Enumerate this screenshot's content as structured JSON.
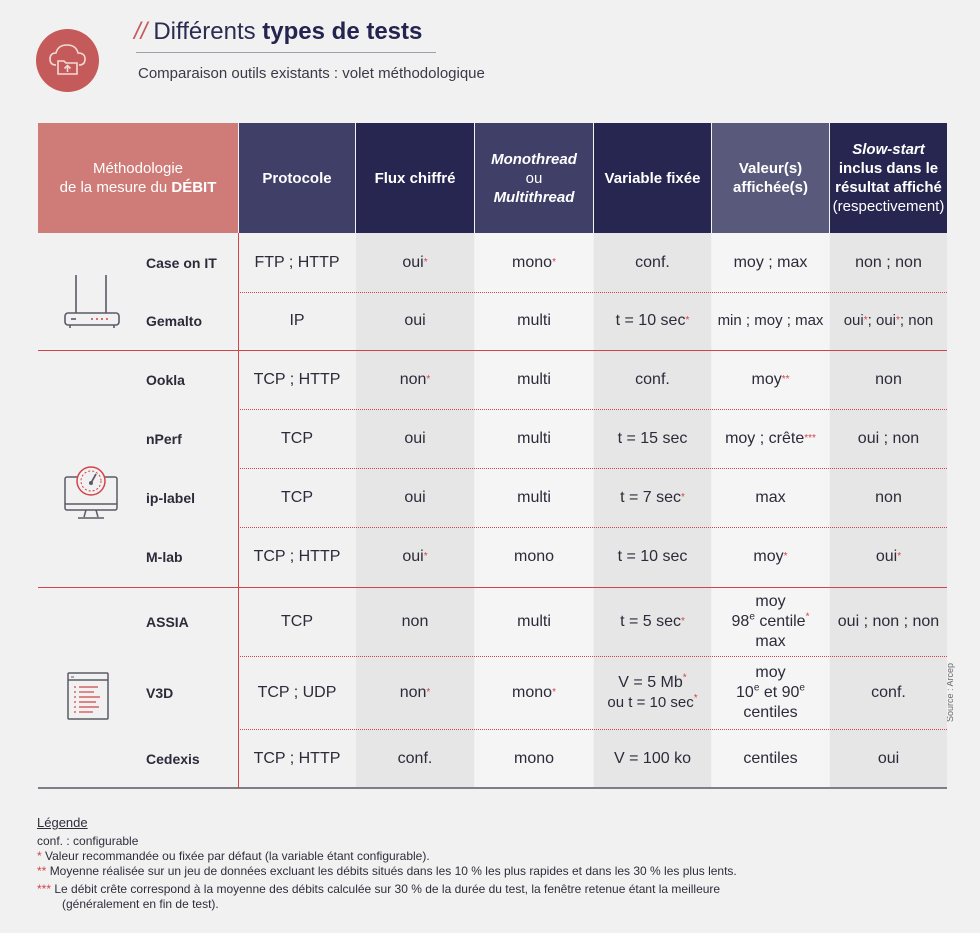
{
  "header": {
    "slash": "//",
    "title_regular": "Différents",
    "title_bold": "types de tests",
    "subtitle": "Comparaison outils existants : volet méthodologique",
    "logo_icon": "cloud-folder-icon"
  },
  "source": "Source : Arcep",
  "table": {
    "header": {
      "methodology_line1": "Méthodologie",
      "methodology_line2": "de la mesure du",
      "methodology_bold": "DÉBIT",
      "protocol": "Protocole",
      "flux": "Flux chiffré",
      "mono_line1": "Monothread",
      "mono_line2": "ou",
      "mono_line3": "Multithread",
      "variable": "Variable fixée",
      "valeur_line1": "Valeur(s)",
      "valeur_line2": "affichée(s)",
      "slow_line1": "Slow-start",
      "slow_line2": "inclus dans le",
      "slow_line3": "résultat affiché",
      "slow_line4": "(respectivement)"
    },
    "rows": [
      {
        "name": "Case on IT",
        "protocol": "FTP ; HTTP",
        "flux": "oui",
        "mono": "mono",
        "variable": "conf.",
        "valeur": "moy ; max",
        "slow": "non ; non"
      },
      {
        "name": "Gemalto",
        "protocol": "IP",
        "flux": "oui",
        "mono": "multi",
        "variable": "t = 10 sec",
        "valeur": "min ; moy ; max",
        "slow_a": "oui",
        "slow_b": " ; oui",
        "slow_c": " ; non"
      },
      {
        "name": "Ookla",
        "protocol": "TCP ; HTTP",
        "flux": "non",
        "mono": "multi",
        "variable": "conf.",
        "valeur": "moy",
        "slow": "non"
      },
      {
        "name": "nPerf",
        "protocol": "TCP",
        "flux": "oui",
        "mono": "multi",
        "variable": "t = 15 sec",
        "valeur": "moy ; crête",
        "slow": "oui ; non"
      },
      {
        "name": "ip-label",
        "protocol": "TCP",
        "flux": "oui",
        "mono": "multi",
        "variable": "t = 7 sec",
        "valeur": "max",
        "slow": "non"
      },
      {
        "name": "M-lab",
        "protocol": "TCP ; HTTP",
        "flux": "oui",
        "mono": "mono",
        "variable": "t = 10 sec",
        "valeur": "moy",
        "slow": "oui"
      },
      {
        "name": "ASSIA",
        "protocol": "TCP",
        "flux": "non",
        "mono": "multi",
        "variable": "t = 5 sec",
        "valeur_l1": "moy",
        "valeur_l2_num": "98",
        "valeur_l2_sup": "e",
        "valeur_l2_rest": " centile",
        "valeur_l3": "max",
        "slow": "oui ; non ; non"
      },
      {
        "name": "V3D",
        "protocol": "TCP ; UDP",
        "flux": "non",
        "mono": "mono",
        "variable_l1": "V = 5 Mb",
        "variable_l2": "ou t = 10 sec",
        "valeur_l1": "moy",
        "valeur_l2_a": "10",
        "valeur_l2_sup1": "e",
        "valeur_l2_b": " et 90",
        "valeur_l2_sup2": "e",
        "valeur_l3": "centiles",
        "slow": "conf."
      },
      {
        "name": "Cedexis",
        "protocol": "TCP ; HTTP",
        "flux": "conf.",
        "mono": "mono",
        "variable": "V = 100 ko",
        "valeur": "centiles",
        "slow": "oui"
      }
    ],
    "group_icons": [
      "router-icon",
      "speedometer-monitor-icon",
      "document-list-icon"
    ]
  },
  "markers": {
    "one": "*",
    "two": "**",
    "three": "***"
  },
  "legend": {
    "title": "Légende",
    "conf": "conf. : configurable",
    "one_star": "Valeur recommandée ou fixée par défaut (la variable étant configurable).",
    "two_star": "Moyenne réalisée sur un jeu de données excluant les débits situés dans les 10 % les plus rapides et dans les 30 %  les plus lents.",
    "three_star_l1": "Le débit  crête correspond à la moyenne des débits  calculée  sur  30 %  de  la  durée  du  test, la  fenêtre  retenue  étant  la  meilleure",
    "three_star_l2": "(généralement en fin de test)."
  },
  "colors": {
    "accent_red": "#c55a5a",
    "header_salmon": "#cf7b77",
    "header_navy": "#262650",
    "header_slate": "#3f3f68",
    "header_mid": "#59597c"
  }
}
